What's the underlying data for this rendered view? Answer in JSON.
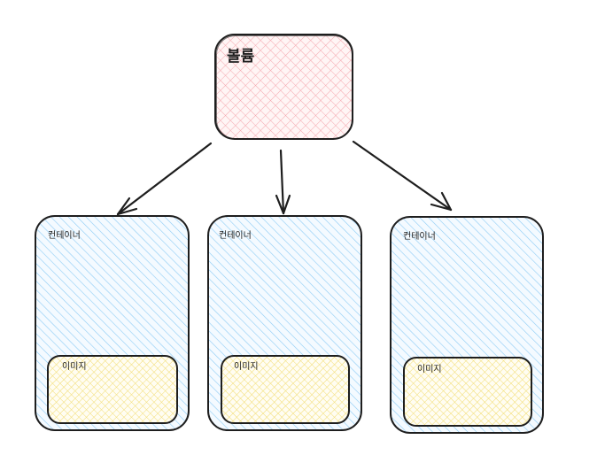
{
  "colors": {
    "stroke": "#1e1e1e",
    "volume_fill": "#ffc9c9",
    "volume_hatch": "#f4a6ad",
    "container_fill": "#a5d8ff",
    "container_hatch": "#8ccbf5",
    "image_fill": "#ffec99",
    "image_hatch": "#f2dc70"
  },
  "volume": {
    "label": "볼륨"
  },
  "containers": [
    {
      "label": "컨테이너",
      "image_label": "이미지"
    },
    {
      "label": "컨테이너",
      "image_label": "이미지"
    },
    {
      "label": "컨테이너",
      "image_label": "이미지"
    }
  ]
}
